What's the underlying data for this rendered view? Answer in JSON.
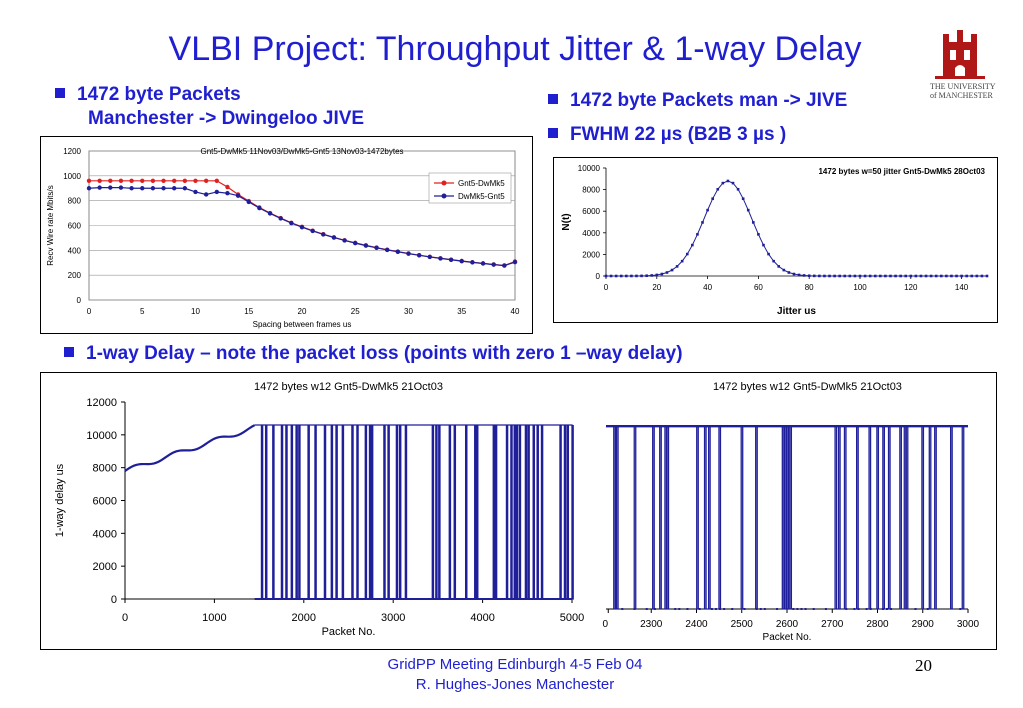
{
  "slide": {
    "title": "VLBI Project: Throughput Jitter & 1-way Delay",
    "logo_text_1": "THE UNIVERSITY",
    "logo_text_2": "of MANCHESTER",
    "bullet_left_1": "1472 byte Packets",
    "bullet_left_2": "Manchester -> Dwingeloo JIVE",
    "bullet_right_1": "1472 byte Packets man -> JIVE",
    "bullet_right_2": "FWHM 22 µs (B2B 3 µs )",
    "bullet_mid": "1-way Delay – note the packet loss (points with zero 1 –way delay)",
    "footer_line1": "GridPP Meeting Edinburgh 4-5 Feb 04",
    "footer_line2": "R. Hughes-Jones  Manchester",
    "page_number": "20",
    "colors": {
      "title": "#1f1fd0",
      "series_red": "#e02020",
      "series_blue": "#1f1f9a",
      "logo_red": "#b01818"
    }
  },
  "chart_data": [
    {
      "type": "line",
      "title": "Gnt5-DwMk5 11Nov03/DwMk5-Gnt5 13Nov03-1472bytes",
      "xlabel": "Spacing between frames us",
      "ylabel": "Recv Wire rate Mbits/s",
      "xlim": [
        0,
        40
      ],
      "ylim": [
        0,
        1200
      ],
      "xticks": [
        "0",
        "5",
        "10",
        "15",
        "20",
        "25",
        "30",
        "35",
        "40"
      ],
      "yticks": [
        "0",
        "200",
        "400",
        "600",
        "800",
        "1000",
        "1200"
      ],
      "legend_position": "right",
      "series": [
        {
          "name": "Gnt5-DwMk5",
          "color": "#e02020",
          "x": [
            0,
            1,
            2,
            3,
            4,
            5,
            6,
            7,
            8,
            9,
            10,
            11,
            12,
            13,
            14,
            15,
            16,
            17,
            18,
            19,
            20,
            21,
            22,
            23,
            24,
            25,
            26,
            27,
            28,
            29,
            30,
            31,
            32,
            33,
            34,
            35,
            36,
            37,
            38,
            39,
            40
          ],
          "y": [
            960,
            960,
            960,
            960,
            960,
            960,
            960,
            960,
            960,
            960,
            960,
            960,
            960,
            910,
            850,
            797,
            745,
            700,
            660,
            622,
            589,
            558,
            530,
            505,
            481,
            460,
            440,
            422,
            405,
            390,
            375,
            361,
            348,
            336,
            325,
            314,
            304,
            295,
            286,
            278,
            310
          ]
        },
        {
          "name": "DwMk5-Gnt5",
          "color": "#1f1f9a",
          "x": [
            0,
            1,
            2,
            3,
            4,
            5,
            6,
            7,
            8,
            9,
            10,
            11,
            12,
            13,
            14,
            15,
            16,
            17,
            18,
            19,
            20,
            21,
            22,
            23,
            24,
            25,
            26,
            27,
            28,
            29,
            30,
            31,
            32,
            33,
            34,
            35,
            36,
            37,
            38,
            39,
            40
          ],
          "y": [
            900,
            905,
            905,
            905,
            900,
            900,
            900,
            900,
            900,
            900,
            870,
            850,
            870,
            860,
            840,
            790,
            740,
            697,
            657,
            620,
            586,
            556,
            528,
            503,
            480,
            458,
            438,
            420,
            403,
            388,
            373,
            360,
            347,
            335,
            324,
            313,
            303,
            294,
            285,
            277,
            305
          ]
        }
      ]
    },
    {
      "type": "line",
      "title": "1472 bytes w=50 jitter Gnt5-DwMk5 28Oct03",
      "xlabel": "Jitter us",
      "ylabel": "N(t)",
      "xlim": [
        0,
        150
      ],
      "ylim": [
        0,
        10000
      ],
      "xticks": [
        "0",
        "20",
        "40",
        "60",
        "80",
        "100",
        "120",
        "140"
      ],
      "yticks": [
        "0",
        "2000",
        "4000",
        "6000",
        "8000",
        "10000"
      ],
      "series": [
        {
          "name": "",
          "color": "#1f1f9a",
          "peak_x": 48,
          "peak_y": 8800,
          "fwhm": 22
        }
      ]
    },
    {
      "type": "line",
      "title": "1472 bytes w12 Gnt5-DwMk5 21Oct03",
      "xlabel": "Packet No.",
      "ylabel": "1-way delay us",
      "xlim": [
        0,
        5000
      ],
      "ylim": [
        0,
        12000
      ],
      "xticks": [
        "0",
        "1000",
        "2000",
        "3000",
        "4000",
        "5000"
      ],
      "yticks": [
        "0",
        "2000",
        "4000",
        "6000",
        "8000",
        "10000",
        "12000"
      ],
      "series": [
        {
          "name": "",
          "color": "#1f1f9a",
          "start_y": 7800,
          "plateau_y": 10600,
          "plateau_from_packet": 1450,
          "loss_value": 0
        }
      ]
    },
    {
      "type": "line",
      "title": "1472 bytes w12 Gnt5-DwMk5 21Oct03",
      "xlabel": "Packet No.",
      "xlim": [
        2200,
        3000
      ],
      "xticks": [
        "0",
        "2300",
        "2400",
        "2500",
        "2600",
        "2700",
        "2800",
        "2900",
        "3000"
      ],
      "series": [
        {
          "name": "",
          "color": "#1f1f9a",
          "plateau_y": 10600,
          "loss_value": 0
        }
      ]
    }
  ]
}
